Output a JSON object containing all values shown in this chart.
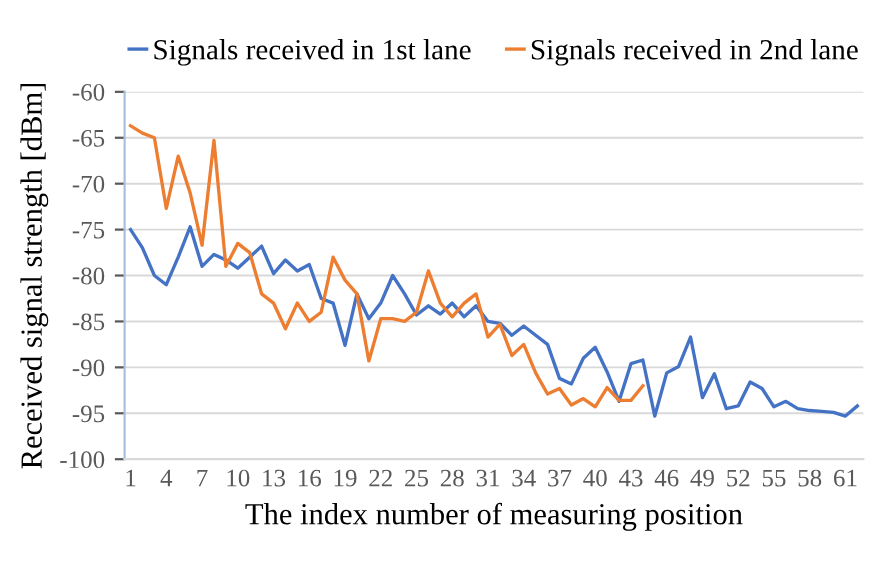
{
  "chart_data": {
    "type": "line",
    "xlabel": "The index number of measuring position",
    "ylabel": "Received signal strength [dBm]",
    "categories": [
      "1",
      null,
      null,
      "4",
      null,
      null,
      "7",
      null,
      null,
      "10",
      null,
      null,
      "13",
      null,
      null,
      "16",
      null,
      null,
      "19",
      null,
      null,
      "22",
      null,
      null,
      "25",
      null,
      null,
      "28",
      null,
      null,
      "31",
      null,
      null,
      "34",
      null,
      null,
      "37",
      null,
      null,
      "40",
      null,
      null,
      "43",
      null,
      null,
      "46",
      null,
      null,
      "49",
      null,
      null,
      "52",
      null,
      null,
      "55",
      null,
      null,
      "58",
      null,
      null,
      "61",
      null
    ],
    "series": [
      {
        "name": "Signals received in 1st lane",
        "color": "#4472c4",
        "values": [
          -75,
          -77,
          -80,
          -81,
          -78,
          -74.7,
          -79,
          -77.7,
          -78.3,
          -79.2,
          -78,
          -76.8,
          -79.8,
          -78.3,
          -79.5,
          -78.8,
          -82.5,
          -83,
          -87.6,
          -82,
          -84.7,
          -83,
          -80,
          -82,
          -84.3,
          -83.3,
          -84.2,
          -83,
          -84.5,
          -83.3,
          -85,
          -85.2,
          -86.5,
          -85.5,
          -86.5,
          -87.5,
          -91.2,
          -91.8,
          -89,
          -87.8,
          -90.5,
          -93.7,
          -89.6,
          -89.2,
          -95.3,
          -90.6,
          -89.9,
          -86.7,
          -93.3,
          -90.7,
          -94.5,
          -94.2,
          -91.6,
          -92.3,
          -94.3,
          -93.7,
          -94.5,
          -94.7,
          -94.8,
          -94.9,
          -95.3,
          -94.2
        ]
      },
      {
        "name": "Signals received in 2nd lane",
        "color": "#ed7d31",
        "values": [
          -63.7,
          -64.5,
          -65,
          -72.7,
          -67,
          -71,
          -76.7,
          -65.3,
          -79,
          -76.5,
          -77.5,
          -82,
          -83,
          -85.8,
          -83,
          -85,
          -84,
          -78,
          -80.5,
          -82,
          -89.3,
          -84.7,
          -84.7,
          -85,
          -84,
          -79.5,
          -83,
          -84.5,
          -83,
          -82,
          -86.7,
          -85.3,
          -88.7,
          -87.5,
          -90.6,
          -92.9,
          -92.3,
          -94.1,
          -93.4,
          -94.3,
          -92.2,
          -93.6,
          -93.6,
          -92,
          null,
          null,
          null,
          null,
          null,
          null,
          null,
          null,
          null,
          null,
          null,
          null,
          null,
          null,
          null,
          null,
          null,
          null
        ]
      }
    ],
    "ylim": [
      -100,
      -60
    ],
    "yticks": [
      -100,
      -95,
      -90,
      -85,
      -80,
      -75,
      -70,
      -65,
      -60
    ],
    "grid": "y",
    "legend": "top",
    "marker": "none",
    "line_style": "solid"
  }
}
